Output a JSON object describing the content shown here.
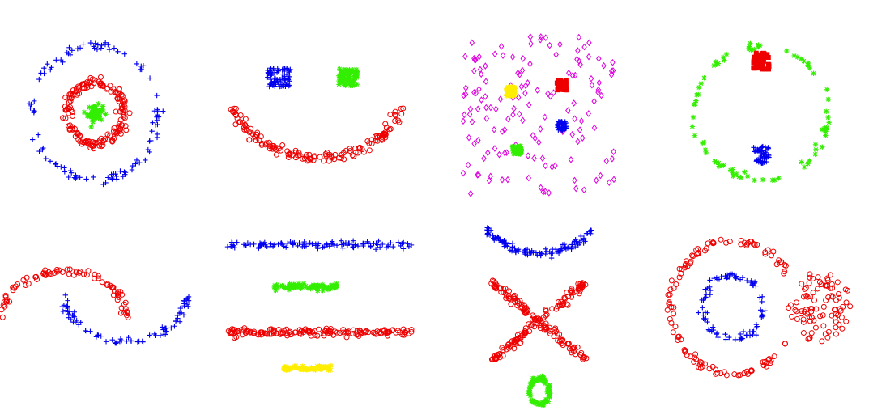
{
  "chart_data": [
    {
      "panel": "p1",
      "type": "scatter",
      "title": "",
      "xlim": [
        -1.25,
        1.25
      ],
      "ylim": [
        -1.2,
        1.2
      ],
      "grid": false,
      "legend": "none",
      "series": [
        {
          "marker": "plus",
          "color": "#0000ee",
          "gen": {
            "kind": "ring",
            "cx": 0,
            "cy": 0,
            "r": 1.0,
            "n": 110,
            "noise": 0.035
          }
        },
        {
          "marker": "circle",
          "color": "#ee0000",
          "gen": {
            "kind": "ring",
            "cx": 0,
            "cy": 0,
            "r": 0.45,
            "n": 170,
            "noise": 0.035
          }
        },
        {
          "marker": "star",
          "color": "#33ee00",
          "gen": {
            "kind": "blob",
            "cx": 0,
            "cy": 0,
            "sx": 0.06,
            "sy": 0.06,
            "n": 60
          }
        }
      ]
    },
    {
      "panel": "p2",
      "type": "scatter",
      "title": "",
      "xlim": [
        -1.1,
        1.1
      ],
      "ylim": [
        -1.05,
        0.65
      ],
      "grid": false,
      "legend": "none",
      "series": [
        {
          "marker": "circle",
          "color": "#ee0000",
          "gen": {
            "kind": "arc",
            "cx": 0,
            "cy": 0.2,
            "r": 1.0,
            "a0": 195,
            "a1": 345,
            "n": 150,
            "noise": 0.035
          }
        },
        {
          "marker": "plus",
          "color": "#0000ee",
          "gen": {
            "kind": "box",
            "cx": -0.45,
            "cy": 0.4,
            "w": 0.28,
            "h": 0.28,
            "n": 80
          }
        },
        {
          "marker": "star",
          "color": "#33ee00",
          "gen": {
            "kind": "box",
            "cx": 0.35,
            "cy": 0.4,
            "w": 0.22,
            "h": 0.26,
            "n": 80
          }
        }
      ]
    },
    {
      "panel": "p3",
      "type": "scatter",
      "title": "",
      "xlim": [
        0,
        10
      ],
      "ylim": [
        0,
        10
      ],
      "grid": false,
      "legend": "none",
      "series": [
        {
          "marker": "diamond",
          "color": "#dd00dd",
          "gen": {
            "kind": "uniform",
            "x0": 0,
            "x1": 10,
            "y0": 0,
            "y1": 10,
            "n": 150
          }
        },
        {
          "marker": "star",
          "color": "#ffee00",
          "gen": {
            "kind": "box",
            "cx": 3.2,
            "cy": 6.5,
            "w": 0.6,
            "h": 0.6,
            "n": 50
          }
        },
        {
          "marker": "square",
          "color": "#ee0000",
          "gen": {
            "kind": "box",
            "cx": 6.5,
            "cy": 6.9,
            "w": 0.6,
            "h": 0.6,
            "n": 50
          }
        },
        {
          "marker": "plus",
          "color": "#0000ee",
          "gen": {
            "kind": "box",
            "cx": 6.5,
            "cy": 4.3,
            "w": 0.6,
            "h": 0.6,
            "n": 50
          }
        },
        {
          "marker": "star",
          "color": "#33ee00",
          "gen": {
            "kind": "box",
            "cx": 3.6,
            "cy": 2.8,
            "w": 0.6,
            "h": 0.6,
            "n": 50
          }
        }
      ]
    },
    {
      "panel": "p4",
      "type": "scatter",
      "title": "",
      "xlim": [
        -1.15,
        1.15
      ],
      "ylim": [
        -1.15,
        1.15
      ],
      "grid": false,
      "legend": "none",
      "series": [
        {
          "marker": "star",
          "color": "#33ee00",
          "gen": {
            "kind": "ring",
            "cx": 0,
            "cy": 0,
            "r": 1.0,
            "n": 80,
            "noise": 0.03
          }
        },
        {
          "marker": "square",
          "color": "#ee0000",
          "gen": {
            "kind": "box",
            "cx": 0,
            "cy": 0.78,
            "w": 0.24,
            "h": 0.24,
            "n": 60
          }
        },
        {
          "marker": "plus",
          "color": "#0000ee",
          "gen": {
            "kind": "box",
            "cx": 0,
            "cy": -0.62,
            "w": 0.24,
            "h": 0.26,
            "n": 60
          }
        }
      ]
    },
    {
      "panel": "p5",
      "type": "scatter",
      "title": "",
      "xlim": [
        -1.05,
        2.05
      ],
      "ylim": [
        -0.65,
        1.1
      ],
      "grid": false,
      "legend": "none",
      "series": [
        {
          "marker": "circle",
          "color": "#ee0000",
          "gen": {
            "kind": "arc",
            "cx": 0,
            "cy": 0,
            "r": 1.0,
            "a0": 0,
            "a1": 180,
            "n": 80,
            "noise": 0.04
          }
        },
        {
          "marker": "plus",
          "color": "#0000ee",
          "gen": {
            "kind": "arc",
            "cx": 1,
            "cy": 0.5,
            "r": 1.0,
            "a0": 180,
            "a1": 360,
            "n": 80,
            "noise": 0.04
          }
        }
      ]
    },
    {
      "panel": "p6",
      "type": "scatter",
      "title": "",
      "xlim": [
        0,
        10
      ],
      "ylim": [
        0,
        10
      ],
      "grid": false,
      "legend": "none",
      "series": [
        {
          "marker": "plus",
          "color": "#0000ee",
          "gen": {
            "kind": "band",
            "x0": 0,
            "x1": 10,
            "y": 9.3,
            "sy": 0.12,
            "n": 120
          }
        },
        {
          "marker": "star",
          "color": "#33ee00",
          "gen": {
            "kind": "band",
            "x0": 2.7,
            "x1": 6.0,
            "y": 6.4,
            "sy": 0.1,
            "n": 80
          }
        },
        {
          "marker": "circle",
          "color": "#ee0000",
          "gen": {
            "kind": "band",
            "x0": 0.3,
            "x1": 10,
            "y": 3.3,
            "sy": 0.12,
            "n": 150
          }
        },
        {
          "marker": "star",
          "color": "#ffee00",
          "gen": {
            "kind": "band",
            "x0": 3.2,
            "x1": 5.7,
            "y": 0.8,
            "sy": 0.1,
            "n": 70
          }
        }
      ]
    },
    {
      "panel": "p7",
      "type": "scatter",
      "title": "",
      "xlim": [
        -1.1,
        1.1
      ],
      "ylim": [
        -1.35,
        1.0
      ],
      "grid": false,
      "legend": "none",
      "series": [
        {
          "marker": "plus",
          "color": "#0000ee",
          "gen": {
            "kind": "arc",
            "cx": 0,
            "cy": 2.28,
            "r": 1.7,
            "a0": 231,
            "a1": 309,
            "n": 120,
            "noise": 0.03
          }
        },
        {
          "marker": "circle",
          "color": "#ee0000",
          "gen": {
            "kind": "line",
            "x0": -0.95,
            "y0": 0.15,
            "x1": 0.95,
            "y1": -1.05,
            "n": 110,
            "noise": 0.035
          }
        },
        {
          "marker": "circle",
          "color": "#ee0000",
          "gen": {
            "kind": "line",
            "x0": -0.95,
            "y0": -1.05,
            "x1": 0.95,
            "y1": 0.15,
            "n": 110,
            "noise": 0.035
          }
        },
        {
          "marker": "star",
          "color": "#33ee00",
          "gen": {
            "kind": "ring",
            "cx": 0,
            "cy": -1.52,
            "r": 0.2,
            "n": 80,
            "noise": 0.02
          }
        }
      ]
    },
    {
      "panel": "p8",
      "type": "scatter",
      "title": "",
      "xlim": [
        -1.15,
        2.1
      ],
      "ylim": [
        -1.15,
        1.15
      ],
      "grid": false,
      "legend": "none",
      "series": [
        {
          "marker": "circle",
          "color": "#ee0000",
          "gen": {
            "kind": "arc",
            "cx": 0,
            "cy": 0,
            "r": 1.05,
            "a0": 30,
            "a1": 330,
            "n": 120,
            "noise": 0.03
          }
        },
        {
          "marker": "plus",
          "color": "#0000ee",
          "gen": {
            "kind": "ring",
            "cx": 0,
            "cy": 0,
            "r": 0.5,
            "n": 90,
            "noise": 0.03
          }
        },
        {
          "marker": "circle",
          "color": "#ee0000",
          "gen": {
            "kind": "disc",
            "cx": 1.45,
            "cy": 0,
            "r": 0.55,
            "n": 90
          }
        }
      ]
    }
  ]
}
